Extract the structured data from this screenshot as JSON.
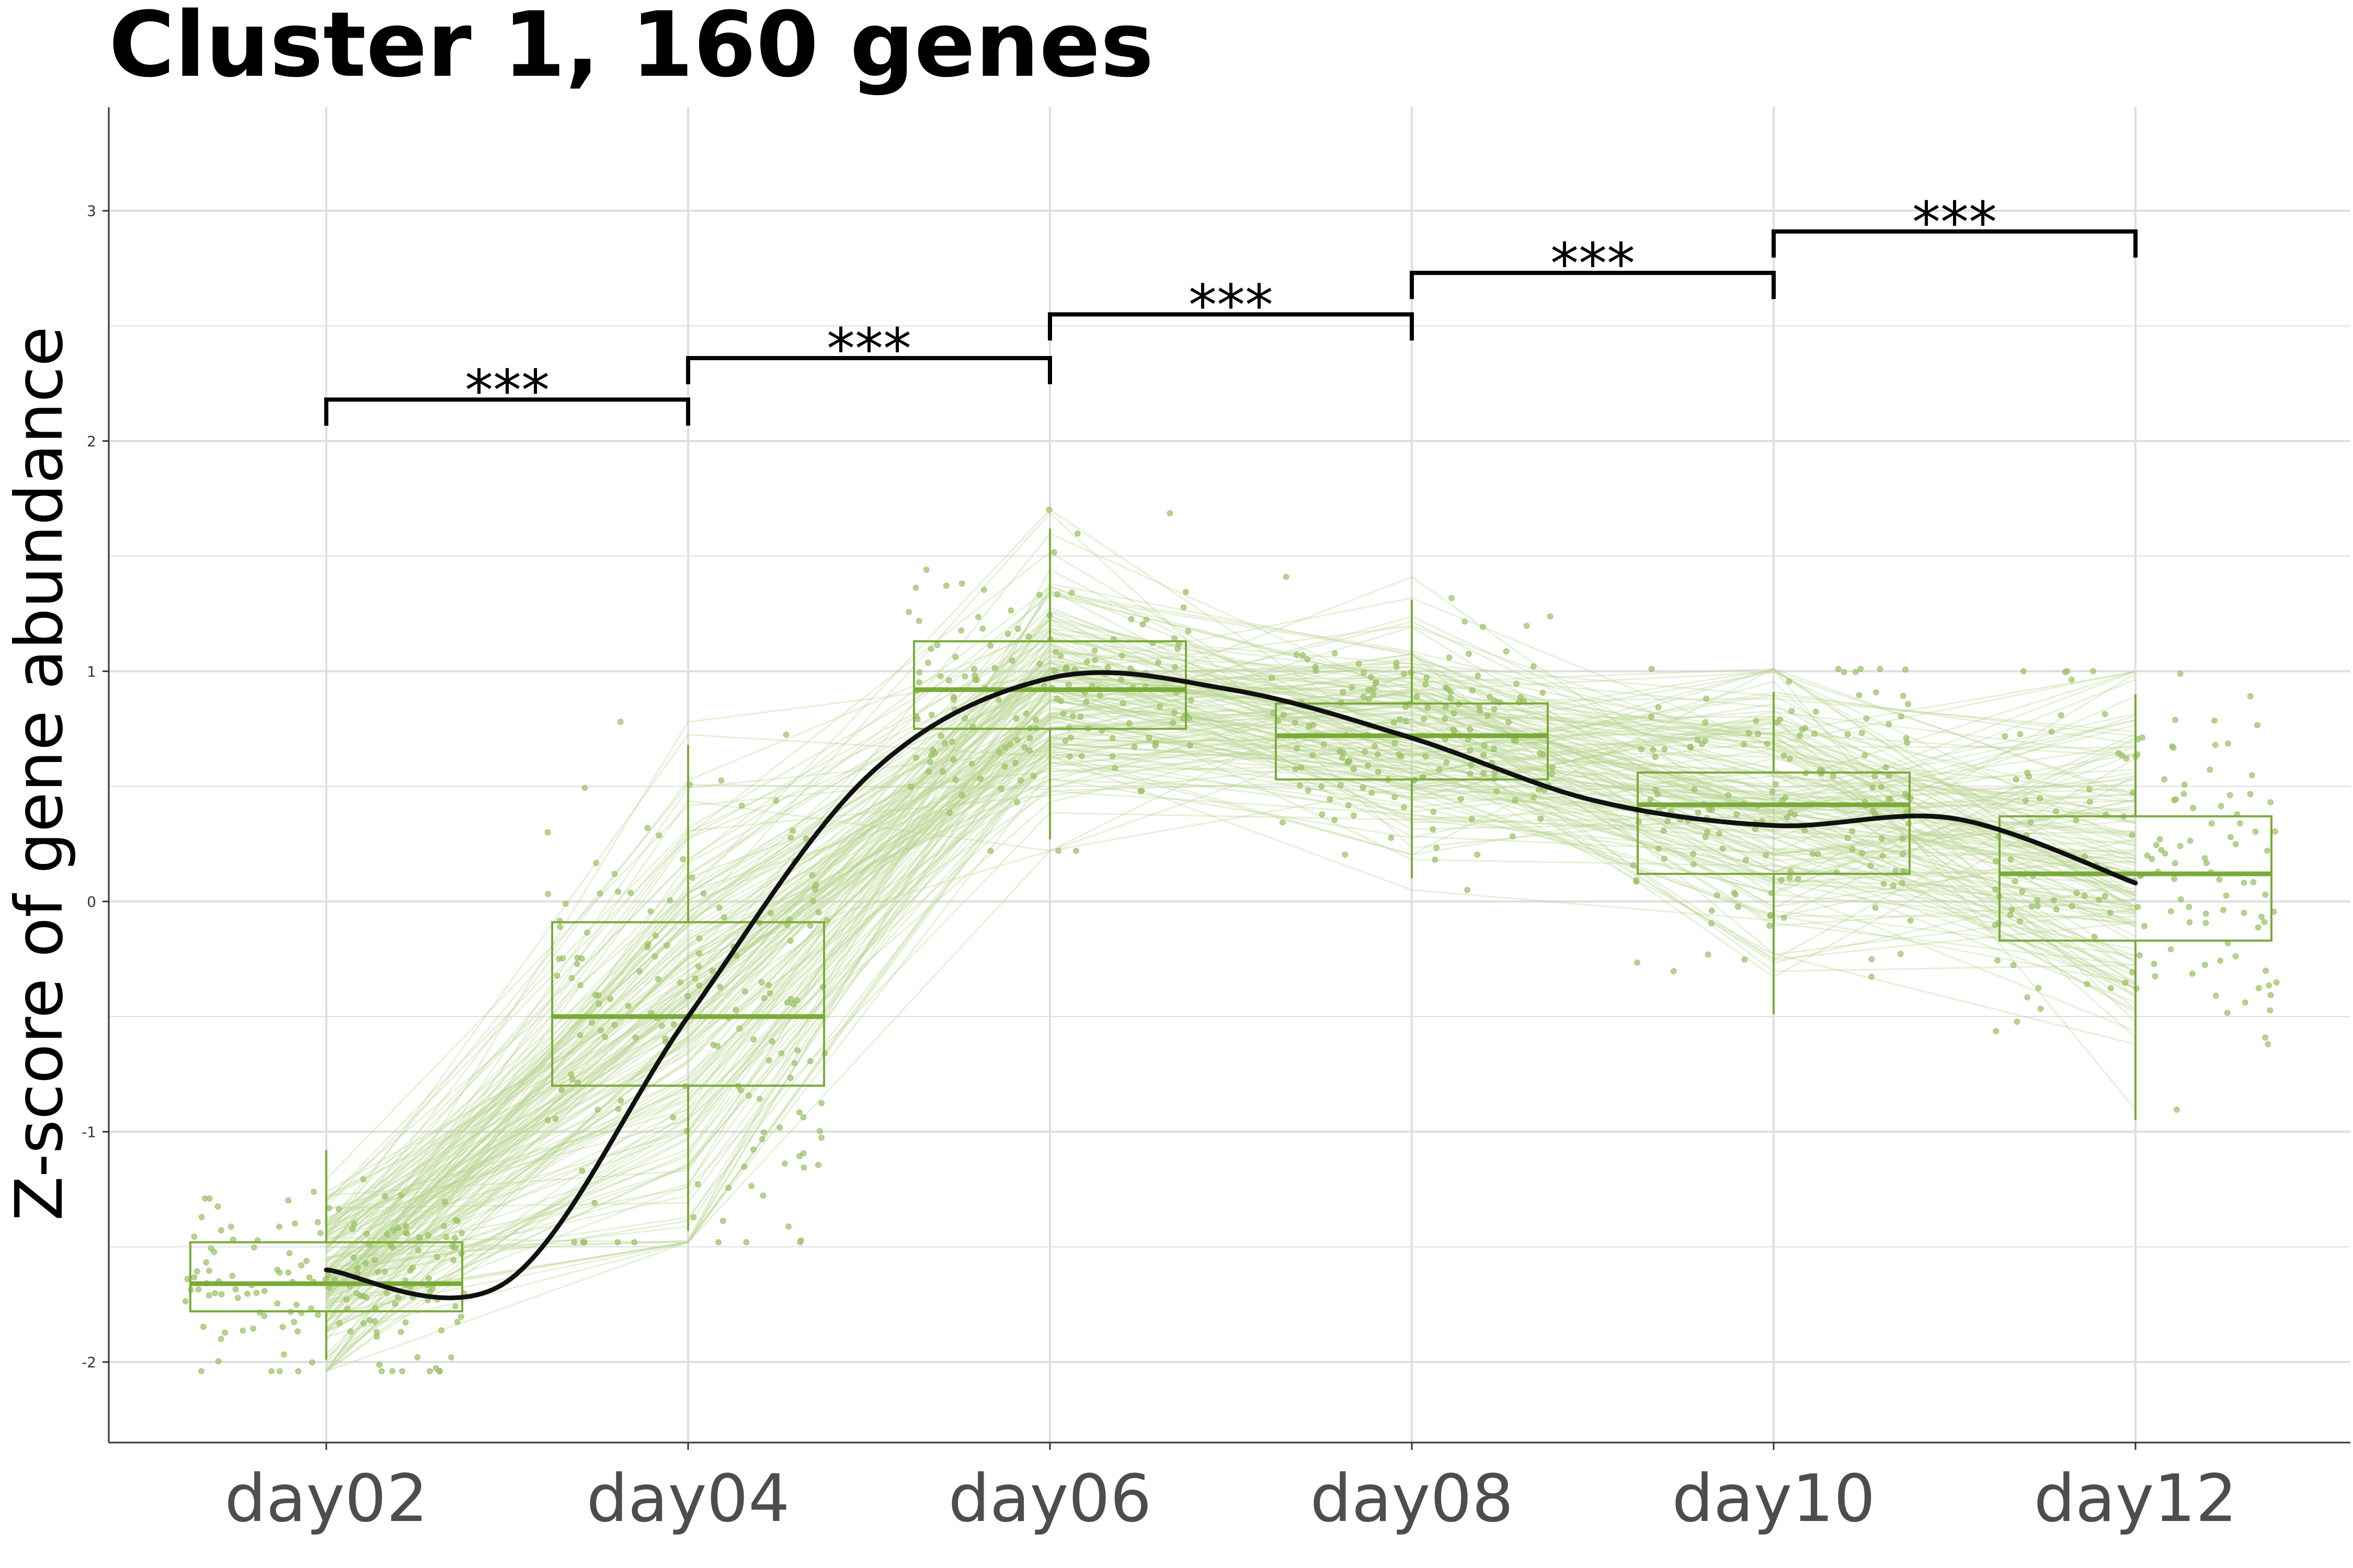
{
  "chart_data": {
    "type": "box",
    "title": "Cluster 1, 160 genes",
    "xlabel": "",
    "ylabel": "Z-score of gene abundance",
    "categories": [
      "day02",
      "day04",
      "day06",
      "day08",
      "day10",
      "day12"
    ],
    "ylim": [
      -2.35,
      3.45
    ],
    "yticks": [
      -2,
      -1,
      0,
      1,
      2,
      3
    ],
    "grid": true,
    "n_genes": 160,
    "boxes": [
      {
        "x": "day02",
        "q1": -1.78,
        "median": -1.66,
        "q3": -1.48,
        "whisker_low": -1.99,
        "whisker_high": -1.08
      },
      {
        "x": "day04",
        "q1": -0.8,
        "median": -0.5,
        "q3": -0.09,
        "whisker_low": -1.43,
        "whisker_high": 0.68
      },
      {
        "x": "day06",
        "q1": 0.75,
        "median": 0.92,
        "q3": 1.13,
        "whisker_low": 0.27,
        "whisker_high": 1.62
      },
      {
        "x": "day08",
        "q1": 0.53,
        "median": 0.72,
        "q3": 0.86,
        "whisker_low": 0.1,
        "whisker_high": 1.31
      },
      {
        "x": "day10",
        "q1": 0.12,
        "median": 0.42,
        "q3": 0.56,
        "whisker_low": -0.49,
        "whisker_high": 0.91
      },
      {
        "x": "day12",
        "q1": -0.17,
        "median": 0.12,
        "q3": 0.37,
        "whisker_low": -0.95,
        "whisker_high": 0.9
      }
    ],
    "trend_line": {
      "x": [
        "day02",
        "day03",
        "day04",
        "day05",
        "day06",
        "day07",
        "day08",
        "day09",
        "day10",
        "day11",
        "day12"
      ],
      "y": [
        -1.6,
        -1.65,
        -0.5,
        0.55,
        0.97,
        0.92,
        0.71,
        0.44,
        0.33,
        0.36,
        0.08
      ]
    },
    "significance": [
      {
        "from": "day02",
        "to": "day04",
        "label": "***",
        "y": 2.18
      },
      {
        "from": "day04",
        "to": "day06",
        "label": "***",
        "y": 2.36
      },
      {
        "from": "day06",
        "to": "day08",
        "label": "***",
        "y": 2.55
      },
      {
        "from": "day08",
        "to": "day10",
        "label": "***",
        "y": 2.73
      },
      {
        "from": "day10",
        "to": "day12",
        "label": "***",
        "y": 2.91
      }
    ],
    "colors": {
      "series": "#7aab3a",
      "points": "#9cc46a",
      "gene_lines": "#b7d58f",
      "trend": "#111111",
      "grid": "#dedede"
    }
  }
}
